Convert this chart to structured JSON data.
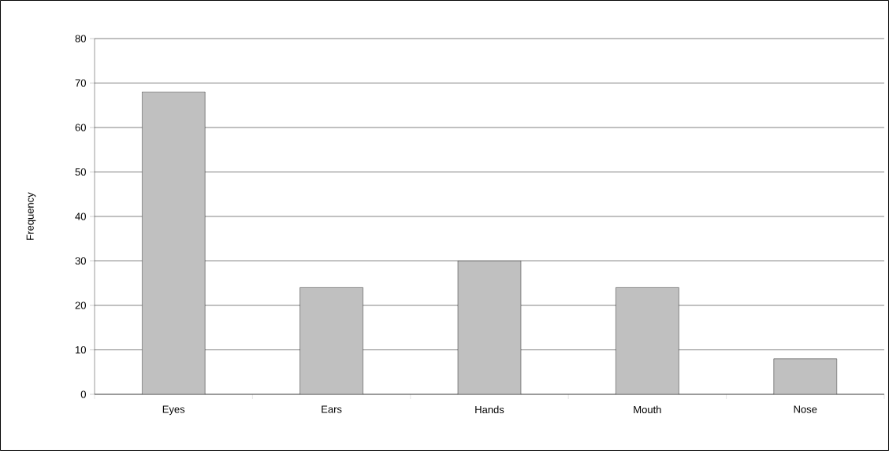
{
  "chart_data": {
    "type": "bar",
    "ylabel": "Frequency",
    "categories": [
      "Eyes",
      "Ears",
      "Hands",
      "Mouth",
      "Nose"
    ],
    "values": [
      68,
      24,
      30,
      24,
      8
    ],
    "color": "#c0c0c0",
    "ylim": [
      0,
      80
    ],
    "yticks": [
      0,
      10,
      20,
      30,
      40,
      50,
      60,
      70,
      80
    ],
    "grid": "y"
  }
}
